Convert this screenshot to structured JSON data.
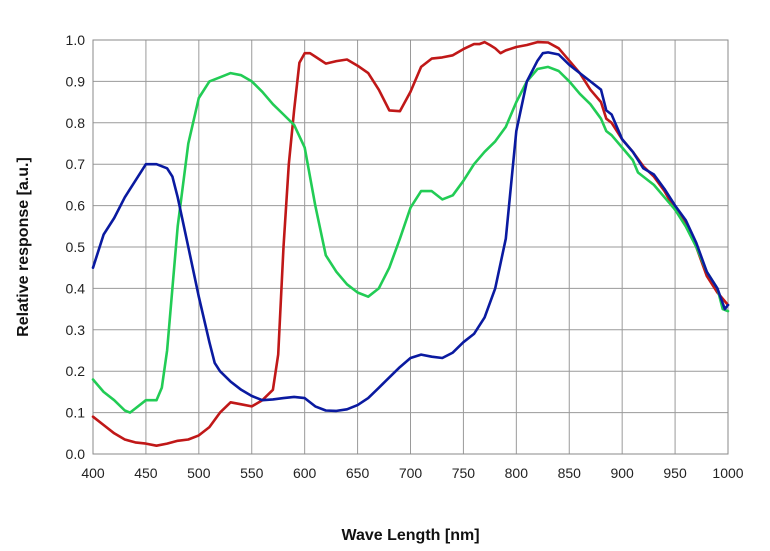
{
  "chart_data": {
    "type": "line",
    "title": "",
    "xlabel": "Wave Length [nm]",
    "ylabel": "Relative  response [a.u.]",
    "xlim": [
      400,
      1000
    ],
    "ylim": [
      0.0,
      1.0
    ],
    "x_ticks": [
      "400",
      "450",
      "500",
      "550",
      "600",
      "650",
      "700",
      "750",
      "800",
      "850",
      "900",
      "950",
      "1000"
    ],
    "y_ticks": [
      "0.0",
      "0.1",
      "0.2",
      "0.3",
      "0.4",
      "0.5",
      "0.6",
      "0.7",
      "0.8",
      "0.9",
      "1.0"
    ],
    "grid": true,
    "legend": "none",
    "series": [
      {
        "color": "#c01818",
        "points": [
          [
            400,
            0.09
          ],
          [
            410,
            0.07
          ],
          [
            420,
            0.05
          ],
          [
            430,
            0.035
          ],
          [
            440,
            0.028
          ],
          [
            450,
            0.025
          ],
          [
            460,
            0.02
          ],
          [
            470,
            0.025
          ],
          [
            480,
            0.032
          ],
          [
            490,
            0.035
          ],
          [
            500,
            0.045
          ],
          [
            510,
            0.065
          ],
          [
            520,
            0.1
          ],
          [
            530,
            0.125
          ],
          [
            540,
            0.12
          ],
          [
            550,
            0.115
          ],
          [
            560,
            0.13
          ],
          [
            570,
            0.155
          ],
          [
            575,
            0.24
          ],
          [
            580,
            0.5
          ],
          [
            585,
            0.7
          ],
          [
            590,
            0.83
          ],
          [
            595,
            0.945
          ],
          [
            600,
            0.968
          ],
          [
            605,
            0.968
          ],
          [
            610,
            0.96
          ],
          [
            620,
            0.943
          ],
          [
            630,
            0.949
          ],
          [
            640,
            0.953
          ],
          [
            650,
            0.938
          ],
          [
            660,
            0.92
          ],
          [
            670,
            0.88
          ],
          [
            680,
            0.83
          ],
          [
            690,
            0.828
          ],
          [
            700,
            0.875
          ],
          [
            710,
            0.935
          ],
          [
            720,
            0.955
          ],
          [
            730,
            0.958
          ],
          [
            740,
            0.963
          ],
          [
            750,
            0.978
          ],
          [
            760,
            0.99
          ],
          [
            765,
            0.99
          ],
          [
            770,
            0.995
          ],
          [
            775,
            0.988
          ],
          [
            780,
            0.98
          ],
          [
            785,
            0.968
          ],
          [
            790,
            0.975
          ],
          [
            800,
            0.983
          ],
          [
            810,
            0.988
          ],
          [
            820,
            0.995
          ],
          [
            830,
            0.994
          ],
          [
            840,
            0.98
          ],
          [
            850,
            0.95
          ],
          [
            860,
            0.92
          ],
          [
            870,
            0.88
          ],
          [
            880,
            0.85
          ],
          [
            885,
            0.81
          ],
          [
            890,
            0.8
          ],
          [
            900,
            0.76
          ],
          [
            910,
            0.73
          ],
          [
            920,
            0.695
          ],
          [
            930,
            0.67
          ],
          [
            940,
            0.635
          ],
          [
            950,
            0.59
          ],
          [
            960,
            0.56
          ],
          [
            970,
            0.5
          ],
          [
            980,
            0.43
          ],
          [
            990,
            0.39
          ],
          [
            1000,
            0.36
          ]
        ]
      },
      {
        "color": "#22cc55",
        "points": [
          [
            400,
            0.18
          ],
          [
            410,
            0.15
          ],
          [
            420,
            0.13
          ],
          [
            430,
            0.105
          ],
          [
            435,
            0.1
          ],
          [
            440,
            0.11
          ],
          [
            450,
            0.13
          ],
          [
            460,
            0.13
          ],
          [
            465,
            0.16
          ],
          [
            470,
            0.25
          ],
          [
            475,
            0.4
          ],
          [
            480,
            0.55
          ],
          [
            490,
            0.75
          ],
          [
            500,
            0.86
          ],
          [
            510,
            0.9
          ],
          [
            520,
            0.91
          ],
          [
            530,
            0.92
          ],
          [
            540,
            0.915
          ],
          [
            550,
            0.9
          ],
          [
            560,
            0.875
          ],
          [
            570,
            0.845
          ],
          [
            580,
            0.82
          ],
          [
            590,
            0.795
          ],
          [
            600,
            0.74
          ],
          [
            610,
            0.6
          ],
          [
            620,
            0.48
          ],
          [
            630,
            0.44
          ],
          [
            640,
            0.41
          ],
          [
            650,
            0.39
          ],
          [
            660,
            0.38
          ],
          [
            670,
            0.4
          ],
          [
            680,
            0.45
          ],
          [
            690,
            0.52
          ],
          [
            700,
            0.595
          ],
          [
            710,
            0.635
          ],
          [
            720,
            0.635
          ],
          [
            730,
            0.615
          ],
          [
            740,
            0.625
          ],
          [
            750,
            0.66
          ],
          [
            760,
            0.7
          ],
          [
            770,
            0.73
          ],
          [
            780,
            0.755
          ],
          [
            790,
            0.79
          ],
          [
            800,
            0.85
          ],
          [
            810,
            0.9
          ],
          [
            820,
            0.93
          ],
          [
            830,
            0.935
          ],
          [
            840,
            0.925
          ],
          [
            850,
            0.9
          ],
          [
            860,
            0.87
          ],
          [
            870,
            0.845
          ],
          [
            880,
            0.81
          ],
          [
            885,
            0.78
          ],
          [
            890,
            0.77
          ],
          [
            900,
            0.74
          ],
          [
            910,
            0.71
          ],
          [
            915,
            0.68
          ],
          [
            920,
            0.67
          ],
          [
            930,
            0.65
          ],
          [
            940,
            0.62
          ],
          [
            950,
            0.59
          ],
          [
            960,
            0.55
          ],
          [
            970,
            0.5
          ],
          [
            980,
            0.44
          ],
          [
            990,
            0.4
          ],
          [
            995,
            0.35
          ],
          [
            1000,
            0.345
          ]
        ]
      },
      {
        "color": "#0a1aa0",
        "points": [
          [
            400,
            0.45
          ],
          [
            410,
            0.53
          ],
          [
            420,
            0.57
          ],
          [
            430,
            0.62
          ],
          [
            440,
            0.66
          ],
          [
            450,
            0.7
          ],
          [
            460,
            0.7
          ],
          [
            470,
            0.69
          ],
          [
            475,
            0.67
          ],
          [
            480,
            0.62
          ],
          [
            490,
            0.5
          ],
          [
            500,
            0.38
          ],
          [
            510,
            0.27
          ],
          [
            515,
            0.22
          ],
          [
            520,
            0.2
          ],
          [
            530,
            0.175
          ],
          [
            540,
            0.155
          ],
          [
            550,
            0.14
          ],
          [
            560,
            0.13
          ],
          [
            570,
            0.132
          ],
          [
            580,
            0.135
          ],
          [
            590,
            0.138
          ],
          [
            600,
            0.135
          ],
          [
            610,
            0.115
          ],
          [
            620,
            0.105
          ],
          [
            630,
            0.104
          ],
          [
            640,
            0.108
          ],
          [
            650,
            0.118
          ],
          [
            660,
            0.135
          ],
          [
            670,
            0.16
          ],
          [
            680,
            0.185
          ],
          [
            690,
            0.21
          ],
          [
            700,
            0.232
          ],
          [
            710,
            0.24
          ],
          [
            720,
            0.235
          ],
          [
            730,
            0.232
          ],
          [
            740,
            0.245
          ],
          [
            750,
            0.27
          ],
          [
            760,
            0.29
          ],
          [
            770,
            0.33
          ],
          [
            780,
            0.4
          ],
          [
            790,
            0.52
          ],
          [
            800,
            0.78
          ],
          [
            810,
            0.9
          ],
          [
            820,
            0.95
          ],
          [
            825,
            0.968
          ],
          [
            830,
            0.97
          ],
          [
            840,
            0.965
          ],
          [
            850,
            0.94
          ],
          [
            860,
            0.92
          ],
          [
            870,
            0.9
          ],
          [
            880,
            0.88
          ],
          [
            885,
            0.83
          ],
          [
            890,
            0.82
          ],
          [
            900,
            0.76
          ],
          [
            910,
            0.73
          ],
          [
            920,
            0.69
          ],
          [
            930,
            0.675
          ],
          [
            940,
            0.64
          ],
          [
            950,
            0.6
          ],
          [
            960,
            0.565
          ],
          [
            970,
            0.51
          ],
          [
            980,
            0.44
          ],
          [
            990,
            0.4
          ],
          [
            997,
            0.35
          ],
          [
            1000,
            0.36
          ]
        ]
      }
    ]
  }
}
